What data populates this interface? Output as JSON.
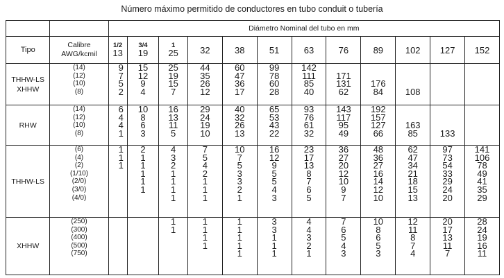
{
  "title": "Número máximo permitido de conductores en tubo conduit o tubería",
  "header": {
    "tipo": "Tipo",
    "calibre_line1": "Calibre",
    "calibre_line2": "AWG/kcmil",
    "diametro": "Diámetro Nominal del tubo en mm",
    "sizes": [
      {
        "frac": "1/2",
        "mm": "13"
      },
      {
        "frac": "3/4",
        "mm": "19"
      },
      {
        "frac": "1",
        "mm": "25"
      },
      {
        "frac": "",
        "mm": "32"
      },
      {
        "frac": "",
        "mm": "38"
      },
      {
        "frac": "",
        "mm": "51"
      },
      {
        "frac": "",
        "mm": "63"
      },
      {
        "frac": "",
        "mm": "76"
      },
      {
        "frac": "",
        "mm": "89"
      },
      {
        "frac": "",
        "mm": "102"
      },
      {
        "frac": "",
        "mm": "127"
      },
      {
        "frac": "",
        "mm": "152"
      }
    ]
  },
  "groups": [
    {
      "tipo": [
        "THHW-LS",
        "XHHW"
      ],
      "calibres": [
        "(14)",
        "(12)",
        "(10)",
        "(8)"
      ],
      "columns": [
        [
          "9",
          "7",
          "5",
          "2"
        ],
        [
          "15",
          "12",
          "9",
          "4"
        ],
        [
          "25",
          "19",
          "15",
          "7"
        ],
        [
          "44",
          "35",
          "26",
          "12"
        ],
        [
          "60",
          "47",
          "36",
          "17"
        ],
        [
          "99",
          "78",
          "60",
          "28"
        ],
        [
          "142",
          "111",
          "85",
          "40"
        ],
        [
          "",
          "171",
          "131",
          "62"
        ],
        [
          "",
          "",
          "176",
          "84"
        ],
        [
          "",
          "",
          "",
          "108"
        ],
        [
          "",
          "",
          "",
          ""
        ],
        [
          "",
          "",
          "",
          ""
        ]
      ]
    },
    {
      "tipo": [
        "RHW"
      ],
      "calibres": [
        "(14)",
        "(12)",
        "(10)",
        "(8)"
      ],
      "columns": [
        [
          "6",
          "4",
          "4",
          "1"
        ],
        [
          "10",
          "8",
          "6",
          "3"
        ],
        [
          "16",
          "13",
          "11",
          "5"
        ],
        [
          "29",
          "24",
          "19",
          "10"
        ],
        [
          "40",
          "32",
          "26",
          "13"
        ],
        [
          "65",
          "53",
          "43",
          "22"
        ],
        [
          "93",
          "76",
          "61",
          "32"
        ],
        [
          "143",
          "117",
          "95",
          "49"
        ],
        [
          "192",
          "157",
          "127",
          "66"
        ],
        [
          "",
          "",
          "163",
          "85"
        ],
        [
          "",
          "",
          "",
          "133"
        ],
        [
          "",
          "",
          "",
          ""
        ]
      ]
    },
    {
      "tipo": [
        "THHW-LS"
      ],
      "calibres": [
        "(6)",
        "(4)",
        "(2)",
        "(1/10)",
        "(2/0)",
        "(3/0)",
        "(4/0)"
      ],
      "columns": [
        [
          "1",
          "1",
          "1",
          "",
          "",
          "",
          ""
        ],
        [
          "2",
          "1",
          "1",
          "1",
          "1",
          "1",
          ""
        ],
        [
          "4",
          "3",
          "2",
          "1",
          "1",
          "1",
          "1"
        ],
        [
          "7",
          "5",
          "4",
          "2",
          "1",
          "1",
          "1"
        ],
        [
          "10",
          "7",
          "5",
          "3",
          "3",
          "2",
          "1"
        ],
        [
          "16",
          "12",
          "9",
          "5",
          "5",
          "4",
          "3"
        ],
        [
          "23",
          "17",
          "13",
          "8",
          "7",
          "6",
          "5"
        ],
        [
          "36",
          "27",
          "20",
          "12",
          "10",
          "9",
          "7"
        ],
        [
          "48",
          "36",
          "27",
          "16",
          "14",
          "12",
          "10"
        ],
        [
          "62",
          "47",
          "34",
          "21",
          "18",
          "15",
          "13"
        ],
        [
          "97",
          "73",
          "54",
          "33",
          "29",
          "24",
          "20"
        ],
        [
          "141",
          "106",
          "78",
          "49",
          "41",
          "35",
          "29"
        ]
      ]
    },
    {
      "tipo": [
        "XHHW"
      ],
      "calibres": [
        "(250)",
        "(300)",
        "(400)",
        "(500)",
        "(750)"
      ],
      "columns": [
        [
          "",
          "",
          "",
          "",
          ""
        ],
        [
          "",
          "",
          "",
          "",
          ""
        ],
        [
          "1",
          "1",
          "",
          "",
          ""
        ],
        [
          "1",
          "1",
          "1",
          "1",
          ""
        ],
        [
          "1",
          "1",
          "1",
          "1",
          "1"
        ],
        [
          "3",
          "3",
          "1",
          "1",
          "1"
        ],
        [
          "4",
          "4",
          "3",
          "2",
          "1"
        ],
        [
          "7",
          "6",
          "5",
          "4",
          "3"
        ],
        [
          "10",
          "8",
          "6",
          "5",
          "3"
        ],
        [
          "12",
          "11",
          "8",
          "7",
          "4"
        ],
        [
          "20",
          "17",
          "13",
          "11",
          "7"
        ],
        [
          "28",
          "24",
          "19",
          "16",
          "11"
        ]
      ]
    }
  ]
}
